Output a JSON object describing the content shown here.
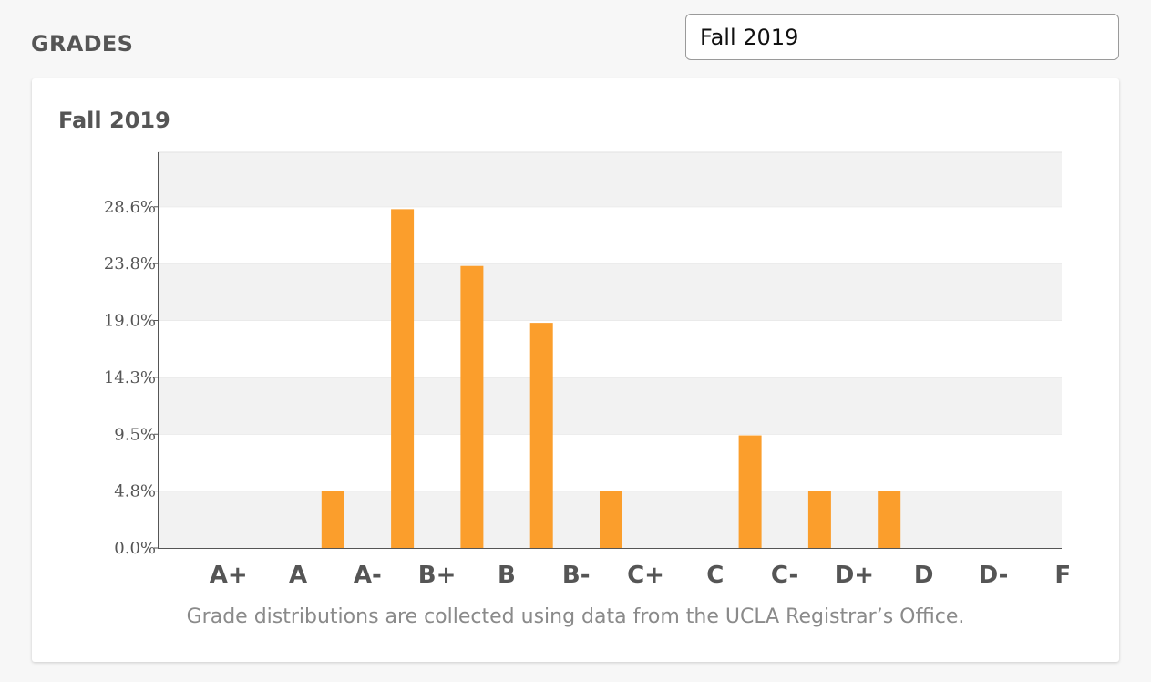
{
  "header": {
    "title": "GRADES"
  },
  "term_select": {
    "selected": "Fall 2019"
  },
  "chart_data": {
    "type": "bar",
    "title": "Fall 2019",
    "categories": [
      "A+",
      "A",
      "A-",
      "B+",
      "B",
      "B-",
      "C+",
      "C",
      "C-",
      "D+",
      "D",
      "D-",
      "F"
    ],
    "values": [
      0,
      4.8,
      28.6,
      23.8,
      19.0,
      4.8,
      0,
      9.5,
      4.8,
      4.8,
      0,
      0,
      0
    ],
    "yticks": [
      "0.0%",
      "4.8%",
      "9.5%",
      "14.3%",
      "19.0%",
      "23.8%",
      "28.6%"
    ],
    "ylim": [
      0,
      33.4
    ],
    "xlabel": "",
    "ylabel": "",
    "grid": true,
    "bar_color": "#fb9e2c",
    "band_color": "#f2f2f2"
  },
  "footnote": "Grade distributions are collected using data from the UCLA Registrar’s Office."
}
